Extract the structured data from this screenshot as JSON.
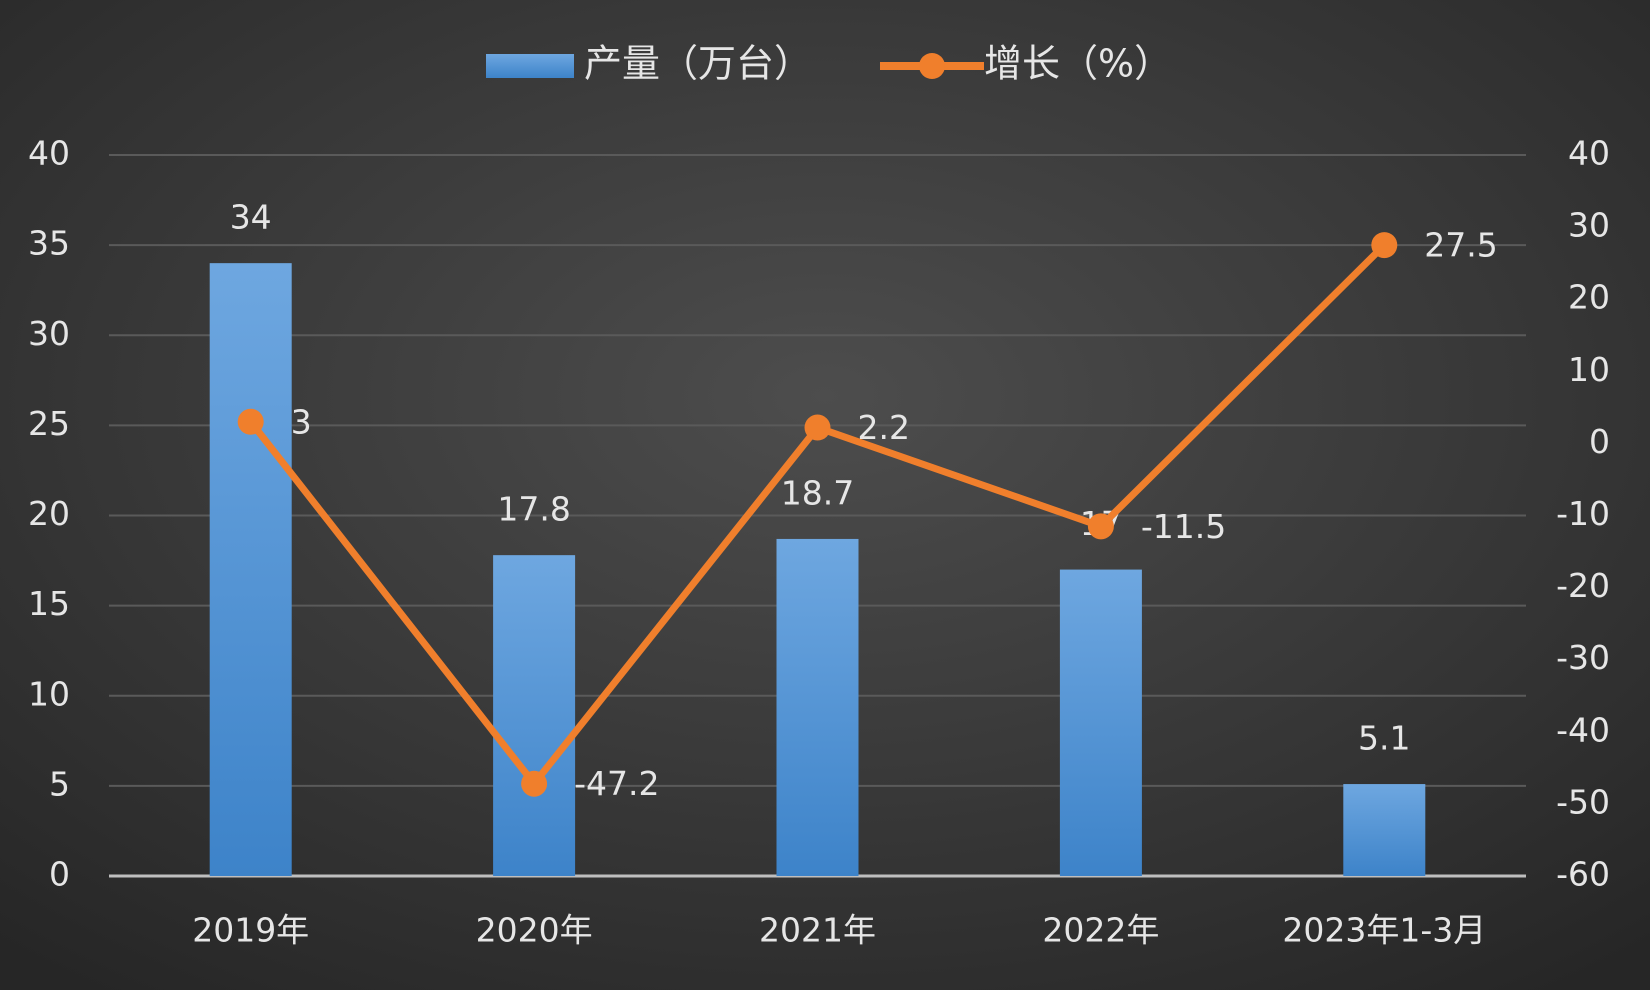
{
  "chart_data": {
    "type": "bar",
    "categories": [
      "2019年",
      "2020年",
      "2021年",
      "2022年",
      "2023年1-3月"
    ],
    "series": [
      {
        "name": "产量（万台）",
        "type": "bar",
        "color": "#5b9bd5",
        "values": [
          34,
          17.8,
          18.7,
          17,
          5.1
        ]
      },
      {
        "name": "增长（%）",
        "type": "line",
        "axis": "y2",
        "color": "#f07f2c",
        "values": [
          3,
          -47.2,
          2.2,
          -11.5,
          27.5
        ]
      }
    ],
    "ylim": [
      0,
      40
    ],
    "yticks": [
      0,
      5,
      10,
      15,
      20,
      25,
      30,
      35,
      40
    ],
    "y2lim": [
      -60,
      40
    ],
    "y2ticks": [
      -60,
      -50,
      -40,
      -30,
      -20,
      -10,
      0,
      10,
      20,
      30,
      40
    ],
    "grid": true
  }
}
